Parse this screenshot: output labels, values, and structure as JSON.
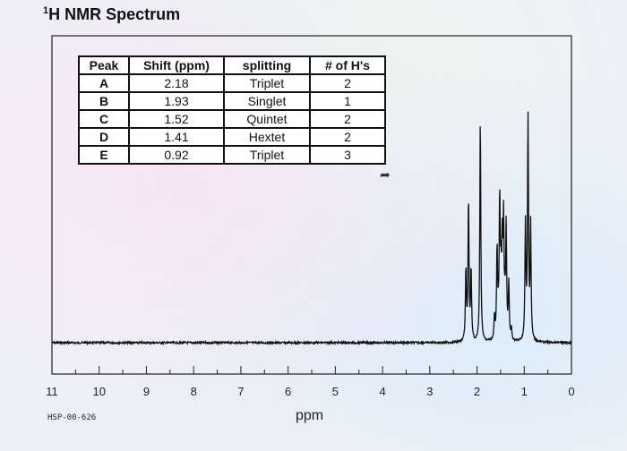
{
  "title_prefix": "1",
  "title": "H NMR Spectrum",
  "instrument_label": "HSP-00-626",
  "table": {
    "headers": [
      "Peak",
      "Shift (ppm)",
      "splitting",
      "# of H's"
    ],
    "rows": [
      [
        "A",
        "2.18",
        "Triplet",
        "2"
      ],
      [
        "B",
        "1.93",
        "Singlet",
        "1"
      ],
      [
        "C",
        "1.52",
        "Quintet",
        "2"
      ],
      [
        "D",
        "1.41",
        "Hextet",
        "2"
      ],
      [
        "E",
        "0.92",
        "Triplet",
        "3"
      ]
    ]
  },
  "chart_data": {
    "type": "line",
    "title": "H NMR Spectrum",
    "xlabel": "ppm",
    "ylabel": "",
    "xlim": [
      11,
      0
    ],
    "x_reversed": true,
    "x_ticks": [
      11,
      10,
      9,
      8,
      7,
      6,
      5,
      4,
      3,
      2,
      1,
      0
    ],
    "grid": false,
    "series": [
      {
        "peaks": [
          {
            "label": "A",
            "shift": 2.18,
            "splitting": "Triplet",
            "lines": 3,
            "relative_height": 0.62
          },
          {
            "label": "B",
            "shift": 1.93,
            "splitting": "Singlet",
            "lines": 1,
            "relative_height": 0.98
          },
          {
            "label": "C",
            "shift": 1.52,
            "splitting": "Quintet",
            "lines": 5,
            "relative_height": 0.6
          },
          {
            "label": "D",
            "shift": 1.41,
            "splitting": "Hextet",
            "lines": 6,
            "relative_height": 0.48
          },
          {
            "label": "E",
            "shift": 0.92,
            "splitting": "Triplet",
            "lines": 3,
            "relative_height": 1.0
          }
        ]
      }
    ]
  }
}
